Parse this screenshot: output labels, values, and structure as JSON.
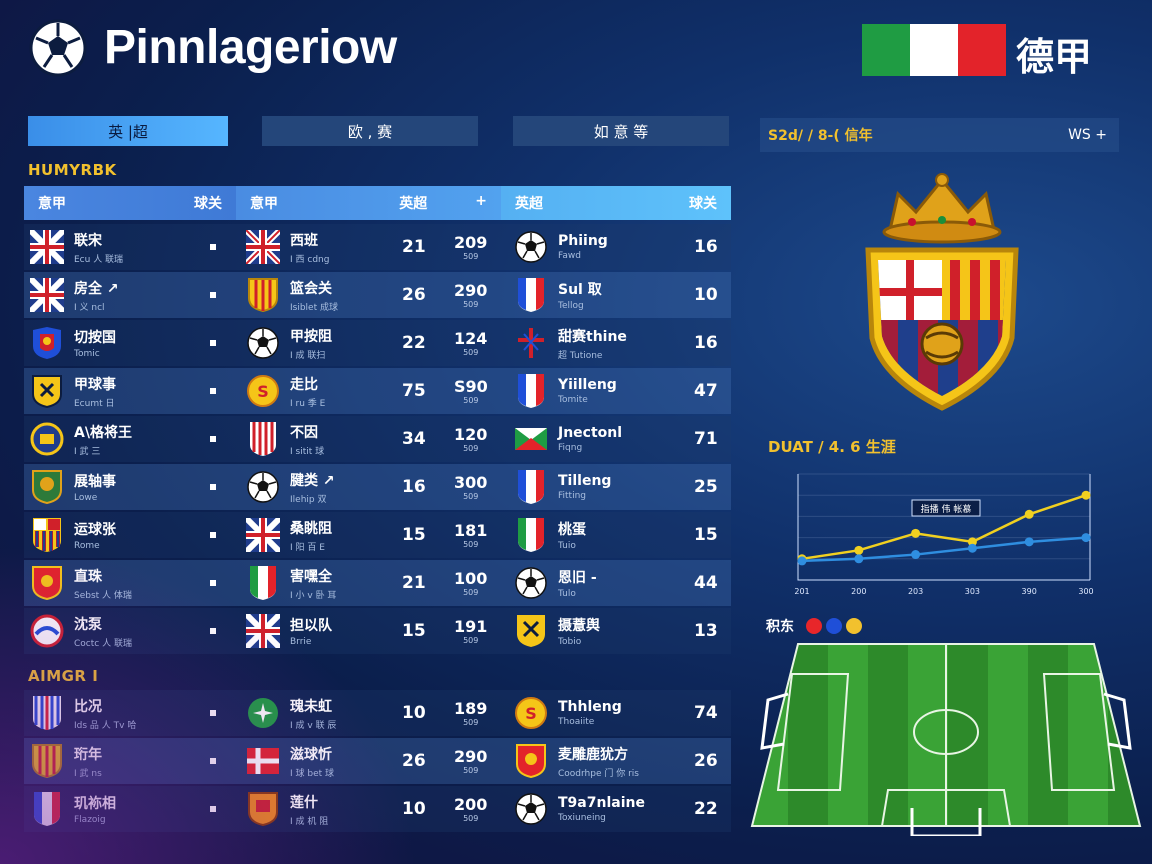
{
  "header": {
    "title": "Pinnlageriow",
    "brand_text": "德甲",
    "flag_colors": [
      "#1f9c43",
      "#ffffff",
      "#e3232a"
    ]
  },
  "tabs": [
    {
      "label": "英 |超"
    },
    {
      "label": "欧 , 赛"
    },
    {
      "label": "如  意  等"
    }
  ],
  "sections": {
    "top": "HUMYRBK",
    "bottom": "AIMGR I"
  },
  "table_header": {
    "a_left": "意甲",
    "a_right": "球关",
    "b_left": "意甲",
    "b_right": "英超",
    "b_plus": "+",
    "c_left": "英超",
    "c_right": "球关"
  },
  "rows": [
    {
      "a": {
        "crest": "gb",
        "name": "联宋",
        "sub": "Ecu 人 联瑞"
      },
      "b": {
        "crest": "gbw",
        "name": "西班",
        "sub": "I 西 cdng",
        "num": "21"
      },
      "stat": {
        "big": "209",
        "tiny": "509"
      },
      "c": {
        "crest": "ball",
        "name": "Phiing",
        "sub": "Fawd",
        "num": "16"
      }
    },
    {
      "a": {
        "crest": "gb",
        "name": "房全 ↗",
        "sub": "I 义 ncl"
      },
      "b": {
        "crest": "es",
        "name": "篮会关",
        "sub": "Isiblet 成球"
      },
      "stat": {
        "big": "290",
        "tiny": "509"
      },
      "c": {
        "crest": "fr",
        "name": "Sul 取",
        "sub": "Tellog",
        "num": "10"
      },
      "b_num": "26"
    },
    {
      "a": {
        "crest": "ac",
        "name": "切按国",
        "sub": "Tomic"
      },
      "b": {
        "crest": "ball",
        "name": "甲按阻",
        "sub": "I 成 联扫",
        "num": "22"
      },
      "stat": {
        "big": "124",
        "tiny": "509"
      },
      "c": {
        "crest": "cross",
        "name": "甜赛thine",
        "sub": "超 Tutione",
        "num": "16"
      }
    },
    {
      "a": {
        "crest": "yb",
        "name": "甲球事",
        "sub": "Ecumt 日"
      },
      "b": {
        "crest": "yo",
        "name": "走比",
        "sub": "I ru 季 E",
        "num": "75"
      },
      "stat": {
        "big": "S90",
        "tiny": "509"
      },
      "c": {
        "crest": "fr",
        "name": "Yiilleng",
        "sub": "Tomite",
        "num": "47"
      }
    },
    {
      "a": {
        "crest": "bo",
        "name": "A\\格将王",
        "sub": "I 武 三"
      },
      "b": {
        "crest": "stripes",
        "name": "不因",
        "sub": "I sitit 球",
        "num": "34"
      },
      "stat": {
        "big": "120",
        "tiny": "509"
      },
      "c": {
        "crest": "mx",
        "name": "Jnectonl",
        "sub": "Fiqng",
        "num": "71"
      }
    },
    {
      "a": {
        "crest": "gr",
        "name": "展轴事",
        "sub": "Lowe"
      },
      "b": {
        "crest": "ball",
        "name": "腱类 ↗",
        "sub": "Ilehip 双",
        "num": "16"
      },
      "stat": {
        "big": "300",
        "tiny": "509"
      },
      "c": {
        "crest": "fr",
        "name": "Tilleng",
        "sub": "Fitting",
        "num": "25"
      }
    },
    {
      "a": {
        "crest": "fcb",
        "name": "运球张",
        "sub": "Rome"
      },
      "b": {
        "crest": "gb",
        "name": "桑眺阻",
        "sub": "I 阳 百 E",
        "num": "15"
      },
      "stat": {
        "big": "181",
        "tiny": "509"
      },
      "c": {
        "crest": "it",
        "name": "桃蛋",
        "sub": "Tuio",
        "num": "15"
      }
    },
    {
      "a": {
        "crest": "rs",
        "name": "直珠",
        "sub": "Sebst 人 体瑞"
      },
      "b": {
        "crest": "it",
        "name": "害嘿全",
        "sub": "I 小 v 卧 耳",
        "num": "21"
      },
      "stat": {
        "big": "100",
        "tiny": "509"
      },
      "c": {
        "crest": "ball",
        "name": "恩旧 -",
        "sub": "Tulo",
        "num": "44"
      }
    },
    {
      "a": {
        "crest": "fr2",
        "name": "沈泵",
        "sub": "Coctc 人 联瑞"
      },
      "b": {
        "crest": "gb",
        "name": "担以队",
        "sub": "Brrie",
        "num": "15"
      },
      "stat": {
        "big": "191",
        "tiny": "509"
      },
      "c": {
        "crest": "yel",
        "name": "摄薏舆",
        "sub": "Tobio",
        "num": "13"
      }
    }
  ],
  "rows2": [
    {
      "a": {
        "crest": "fr3",
        "name": "比况",
        "sub": "Ids 品 人 Tv 哈"
      },
      "b": {
        "crest": "gr2",
        "name": "瑰未虹",
        "sub": "I 成 v 联 辰",
        "num": "10"
      },
      "stat": {
        "big": "189",
        "tiny": "509"
      },
      "c": {
        "crest": "yo",
        "name": "Thhleng",
        "sub": "Thoaiite",
        "num": "74"
      }
    },
    {
      "a": {
        "crest": "es",
        "name": "珩年",
        "sub": "I 武 ns"
      },
      "b": {
        "crest": "dk",
        "name": "滋球忻",
        "sub": "I 球 bet 球",
        "num": "26"
      },
      "stat": {
        "big": "290",
        "tiny": "509"
      },
      "c": {
        "crest": "rs",
        "name": "麦雕鹿犹方",
        "sub": "Coodrhpe 门 你 ris",
        "num": "26"
      }
    },
    {
      "a": {
        "crest": "fr",
        "name": "玑袮相",
        "sub": "Flazoig"
      },
      "b": {
        "crest": "or",
        "name": "莲什",
        "sub": "I 成 机 阻",
        "num": "10"
      },
      "stat": {
        "big": "200",
        "tiny": "509"
      },
      "c": {
        "crest": "ball",
        "name": "T9a7nlaine",
        "sub": "Toxiuneing",
        "num": "22"
      }
    }
  ],
  "right_panel": {
    "bar_left": "S2d/ / 8-( 信年",
    "bar_right": "WS  +"
  },
  "chart_data": {
    "type": "line",
    "title": "DUAT / 4. 6 生涯",
    "annotation": "指播 伟 帐慕",
    "x": [
      "201",
      "200",
      "203",
      "303",
      "390",
      "300"
    ],
    "series": [
      {
        "color": "#f0d020",
        "values": [
          20,
          28,
          44,
          36,
          62,
          80
        ]
      },
      {
        "color": "#2f8ee0",
        "values": [
          18,
          20,
          24,
          30,
          36,
          40
        ]
      }
    ],
    "ylim": [
      0,
      100
    ]
  },
  "legend": {
    "label": "积东",
    "colors": [
      "#e8262a",
      "#1f4fd8",
      "#f2c12e"
    ]
  }
}
